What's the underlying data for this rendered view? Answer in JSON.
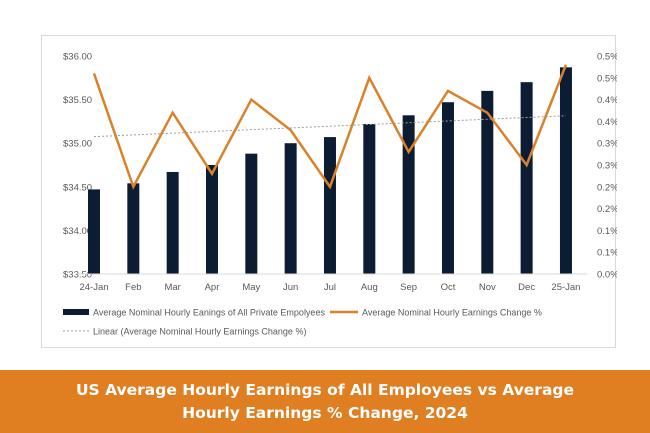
{
  "colors": {
    "bar": "#0c1c33",
    "line": "#d9822b",
    "trend": "#9e9e9e",
    "banner": "#e07f21",
    "tick_text": "#595959"
  },
  "chart_data": {
    "type": "bar",
    "categories": [
      "24-Jan",
      "Feb",
      "Mar",
      "Apr",
      "May",
      "Jun",
      "Jul",
      "Aug",
      "Sep",
      "Oct",
      "Nov",
      "Dec",
      "25-Jan"
    ],
    "series": [
      {
        "name": "Average Nominal Hourly Eanings of All Private Empolyees",
        "type": "bar",
        "axis": "left",
        "values": [
          34.47,
          34.54,
          34.67,
          34.75,
          34.88,
          35.0,
          35.07,
          35.22,
          35.32,
          35.47,
          35.6,
          35.7,
          35.87
        ]
      },
      {
        "name": "Average Nominal Hourly Earnings Change %",
        "type": "line",
        "axis": "right",
        "values": [
          0.46,
          0.2,
          0.37,
          0.23,
          0.4,
          0.33,
          0.2,
          0.45,
          0.28,
          0.42,
          0.37,
          0.25,
          0.48
        ]
      },
      {
        "name": "Linear (Average Nominal Hourly Earnings Change %)",
        "type": "trendline",
        "axis": "right",
        "start": 0.315,
        "end": 0.363
      }
    ],
    "y_left": {
      "lim": [
        33.5,
        36.0
      ],
      "ticks": [
        33.5,
        34.0,
        34.5,
        35.0,
        35.5,
        36.0
      ],
      "tick_labels": [
        "$33.50",
        "$34.00",
        "$34.50",
        "$35.00",
        "$35.50",
        "$36.00"
      ]
    },
    "y_right": {
      "lim": [
        0.0,
        0.5
      ],
      "ticks": [
        0.0,
        0.05,
        0.1,
        0.15,
        0.2,
        0.25,
        0.3,
        0.35,
        0.4,
        0.45,
        0.5
      ],
      "tick_labels": [
        "0.0%",
        "0.1%",
        "0.1%",
        "0.2%",
        "0.2%",
        "0.3%",
        "0.3%",
        "0.4%",
        "0.4%",
        "0.5%",
        "0.5%"
      ]
    },
    "grid": false,
    "legend_position": "bottom"
  },
  "legend": {
    "bar_label": "Average Nominal Hourly Eanings of All Private Empolyees",
    "line_label": "Average Nominal Hourly Earnings Change %",
    "trend_label": "Linear (Average Nominal Hourly Earnings Change %)"
  },
  "footer": {
    "title": "US Average Hourly Earnings of All Employees vs Average Hourly Earnings % Change, 2024"
  }
}
